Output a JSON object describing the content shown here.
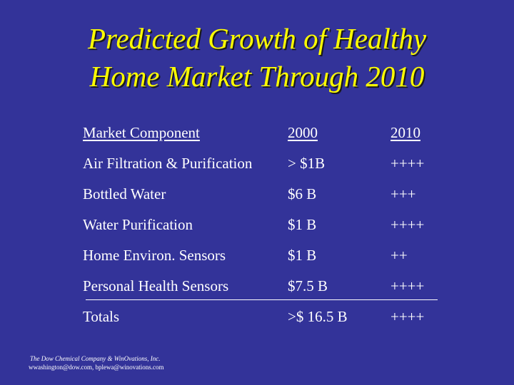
{
  "title": {
    "line1": "Predicted Growth of Healthy",
    "line2": "Home Market Through 2010"
  },
  "table": {
    "headers": {
      "component": "Market Component",
      "year_2000": "2000",
      "year_2010": "2010"
    },
    "rows": [
      {
        "component": "Air Filtration & Purification",
        "year_2000": "> $1B",
        "year_2010": "++++"
      },
      {
        "component": "Bottled Water",
        "year_2000": "$6 B",
        "year_2010": "+++"
      },
      {
        "component": "Water Purification",
        "year_2000": "$1 B",
        "year_2010": "++++"
      },
      {
        "component": "Home Environ. Sensors",
        "year_2000": "$1 B",
        "year_2010": "++"
      },
      {
        "component": "Personal Health Sensors",
        "year_2000": "$7.5 B",
        "year_2010": "++++"
      }
    ],
    "totals": {
      "component": "Totals",
      "year_2000": ">$ 16.5 B",
      "year_2010": "++++"
    }
  },
  "footer": {
    "company": "The Dow Chemical Company & WinOvations, Inc.",
    "emails": "wwashington@dow.com, bplewa@winovations.com"
  },
  "colors": {
    "background": "#333399",
    "title": "#ffff00",
    "text": "#ffffff"
  }
}
